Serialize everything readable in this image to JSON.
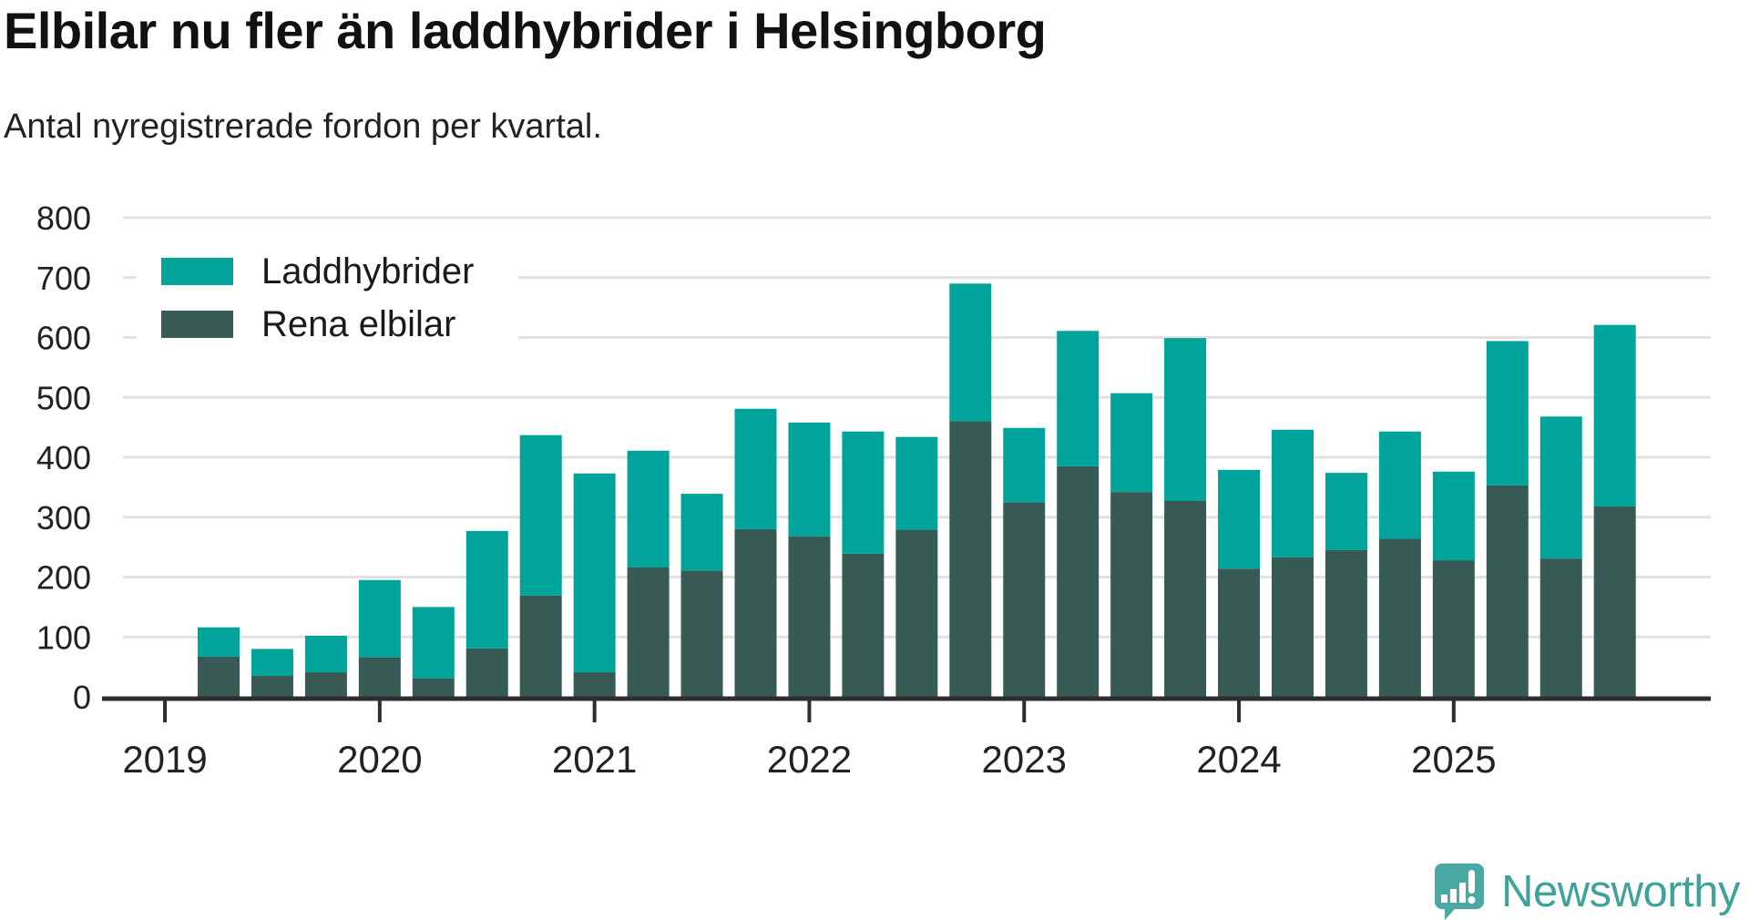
{
  "page": {
    "title": "Elbilar nu fler än laddhybrider i Helsingborg",
    "subtitle": "Antal nyregistrerade fordon per kvartal."
  },
  "legend": {
    "items": [
      {
        "label": "Laddhybrider",
        "color": "#00a49b"
      },
      {
        "label": "Rena elbilar",
        "color": "#385a54"
      }
    ]
  },
  "chart_data": {
    "type": "bar",
    "stacked": true,
    "title": "Elbilar nu fler än laddhybrider i Helsingborg",
    "subtitle": "Antal nyregistrerade fordon per kvartal.",
    "xlabel": "",
    "ylabel": "",
    "quarters": [
      "2019Q2",
      "2019Q3",
      "2019Q4",
      "2020Q1",
      "2020Q2",
      "2020Q3",
      "2020Q4",
      "2021Q1",
      "2021Q2",
      "2021Q3",
      "2021Q4",
      "2022Q1",
      "2022Q2",
      "2022Q3",
      "2022Q4",
      "2023Q1",
      "2023Q2",
      "2023Q3",
      "2023Q4",
      "2024Q1",
      "2024Q2",
      "2024Q3",
      "2024Q4",
      "2025Q1",
      "2025Q2",
      "2025Q3",
      "2025Q4"
    ],
    "series": [
      {
        "name": "Rena elbilar",
        "color": "#385a54",
        "stack_position": "bottom",
        "values": [
          67,
          35,
          41,
          66,
          31,
          81,
          169,
          41,
          216,
          211,
          280,
          268,
          239,
          279,
          460,
          325,
          385,
          342,
          327,
          214,
          233,
          245,
          264,
          228,
          353,
          231,
          318
        ]
      },
      {
        "name": "Laddhybrider",
        "color": "#00a49b",
        "stack_position": "top",
        "values": [
          49,
          45,
          61,
          129,
          119,
          196,
          268,
          332,
          195,
          128,
          201,
          190,
          204,
          155,
          230,
          124,
          226,
          165,
          272,
          165,
          213,
          129,
          179,
          148,
          241,
          237,
          303
        ]
      }
    ],
    "ylim": [
      0,
      800
    ],
    "yticks": [
      0,
      100,
      200,
      300,
      400,
      500,
      600,
      700,
      800
    ],
    "year_ticks": [
      "2019",
      "2020",
      "2021",
      "2022",
      "2023",
      "2024",
      "2025"
    ],
    "grid": "horizontal",
    "legend_position": "top-left-inside",
    "colors": {
      "gridline": "#e1e1e1",
      "axis": "#2e2e2e",
      "tick_label": "#222222"
    }
  },
  "branding": {
    "name": "Newsworthy",
    "logo_color": "#4aa9a2",
    "text_color": "#3ea39b"
  }
}
